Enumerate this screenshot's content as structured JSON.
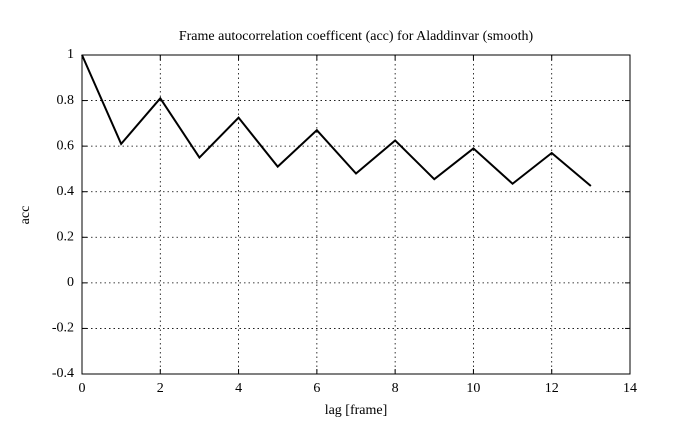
{
  "chart_data": {
    "type": "line",
    "title": "Frame autocorrelation coefficent (acc) for Aladdinvar (smooth)",
    "x_label": "lag [frame]",
    "y_label": "acc",
    "x": [
      0,
      1,
      2,
      3,
      4,
      5,
      6,
      7,
      8,
      9,
      10,
      11,
      12,
      13
    ],
    "series": [
      {
        "name": "acc",
        "color": "#000000",
        "values": [
          1,
          0.61,
          0.81,
          0.55,
          0.725,
          0.51,
          0.67,
          0.48,
          0.625,
          0.455,
          0.59,
          0.435,
          0.57,
          0.425
        ]
      }
    ],
    "xlim": [
      0,
      14
    ],
    "xticks": [
      0,
      2,
      4,
      6,
      8,
      10,
      12,
      14
    ],
    "ylim": [
      -0.4,
      1
    ],
    "yticks": [
      -0.4,
      -0.2,
      0,
      0.2,
      0.4,
      0.6,
      0.8,
      1
    ],
    "grid": true
  }
}
